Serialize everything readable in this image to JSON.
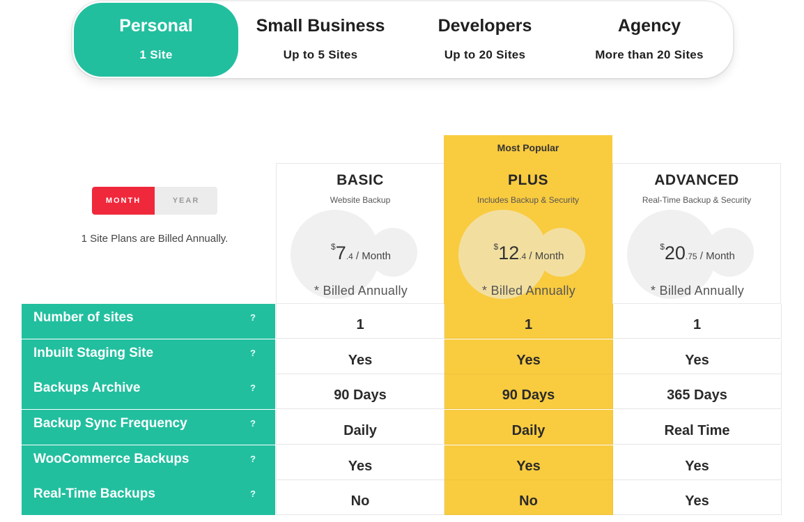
{
  "tabs": [
    {
      "title": "Personal",
      "subtitle": "1 Site",
      "active": true
    },
    {
      "title": "Small Business",
      "subtitle": "Up to 5 Sites",
      "active": false
    },
    {
      "title": "Developers",
      "subtitle": "Up to 20 Sites",
      "active": false
    },
    {
      "title": "Agency",
      "subtitle": "More than 20 Sites",
      "active": false
    }
  ],
  "billing": {
    "month_label": "MONTH",
    "year_label": "YEAR",
    "note": "1 Site Plans are Billed Annually."
  },
  "popular_label": "Most Popular",
  "plans": [
    {
      "name": "BASIC",
      "desc": "Website Backup",
      "currency": "$",
      "amount": "7",
      "decimal": ".4",
      "period": " / Month",
      "billed": "* Billed Annually"
    },
    {
      "name": "PLUS",
      "desc": "Includes Backup & Security",
      "currency": "$",
      "amount": "12",
      "decimal": ".4",
      "period": " / Month",
      "billed": "* Billed Annually"
    },
    {
      "name": "ADVANCED",
      "desc": "Real-Time Backup & Security",
      "currency": "$",
      "amount": "20",
      "decimal": ".75",
      "period": " / Month",
      "billed": "* Billed Annually"
    }
  ],
  "help_mark": "?",
  "features": [
    {
      "label": "Number of sites",
      "values": [
        "1",
        "1",
        "1"
      ]
    },
    {
      "label": "Inbuilt Staging Site",
      "values": [
        "Yes",
        "Yes",
        "Yes"
      ]
    },
    {
      "label": "Backups Archive",
      "values": [
        "90 Days",
        "90 Days",
        "365 Days"
      ]
    },
    {
      "label": "Backup Sync Frequency",
      "values": [
        "Daily",
        "Daily",
        "Real Time"
      ]
    },
    {
      "label": "WooCommerce Backups",
      "values": [
        "Yes",
        "Yes",
        "Yes"
      ]
    },
    {
      "label": "Real-Time Backups",
      "values": [
        "No",
        "No",
        "Yes"
      ]
    }
  ],
  "colors": {
    "accent_green": "#22bf9f",
    "highlight_yellow": "#f9cb3f",
    "toggle_red": "#f0283c"
  }
}
